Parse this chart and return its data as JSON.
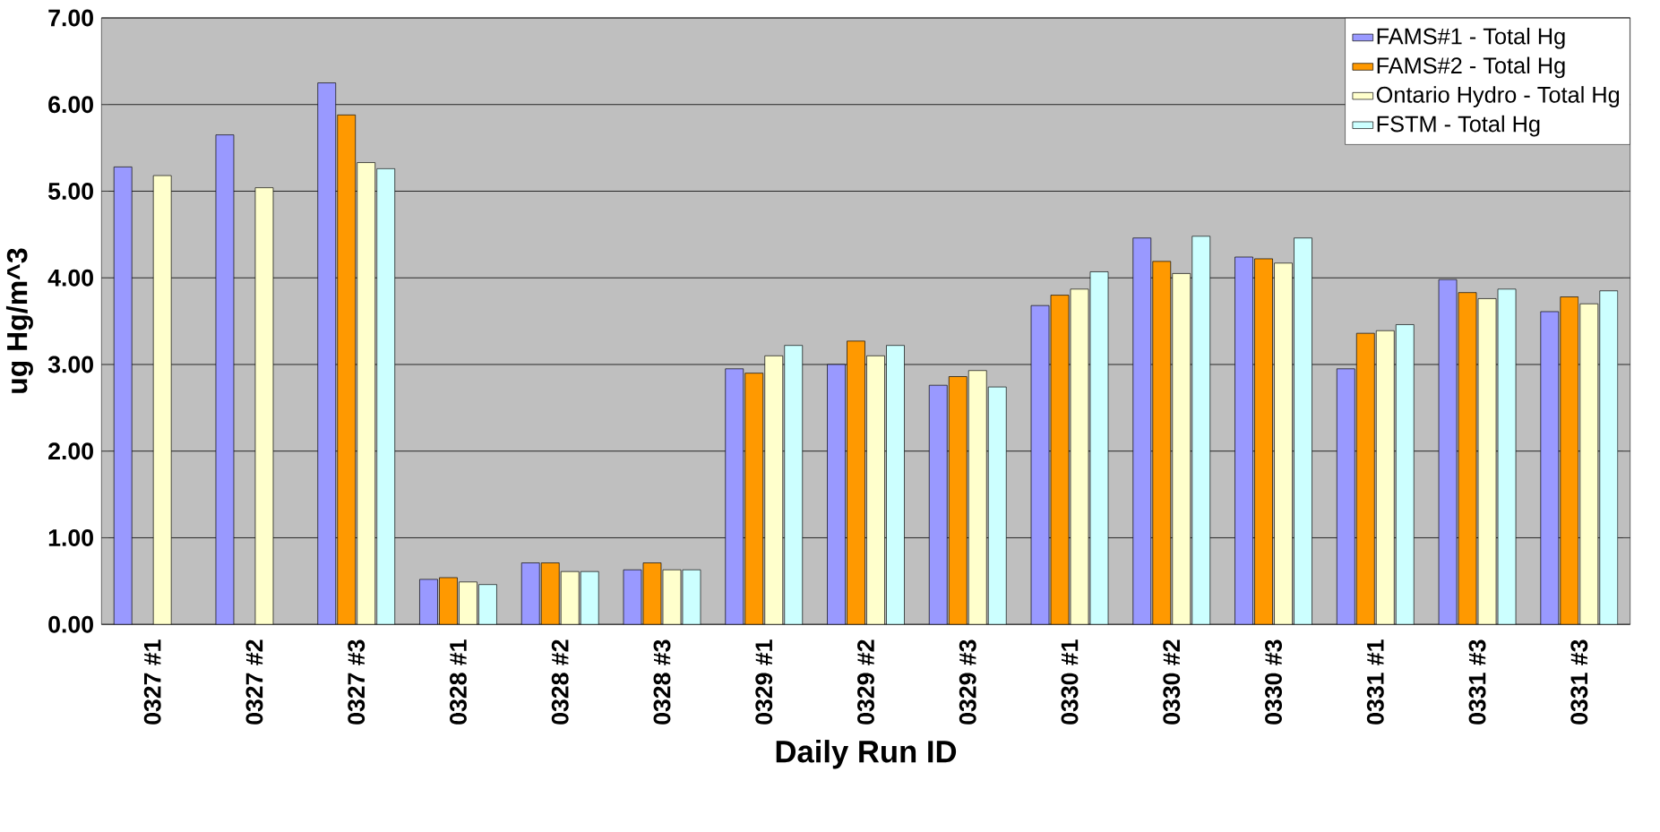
{
  "chart_data": {
    "type": "bar",
    "xlabel": "Daily Run ID",
    "ylabel": "ug Hg/m^3",
    "categories": [
      "0327 #1",
      "0327 #2",
      "0327 #3",
      "0328 #1",
      "0328 #2",
      "0328 #3",
      "0329 #1",
      "0329 #2",
      "0329 #3",
      "0330 #1",
      "0330 #2",
      "0330 #3",
      "0331 #1",
      "0331 #3",
      "0331 #3"
    ],
    "series": [
      {
        "name": "FAMS#1 - Total Hg",
        "color": "#9999ff",
        "values": [
          5.28,
          5.65,
          6.25,
          0.52,
          0.71,
          0.63,
          2.95,
          3.0,
          2.76,
          3.68,
          4.46,
          4.24,
          2.95,
          3.98,
          3.61
        ]
      },
      {
        "name": "FAMS#2 - Total Hg",
        "color": "#ff9900",
        "values": [
          null,
          null,
          5.88,
          0.54,
          0.71,
          0.71,
          2.9,
          3.27,
          2.86,
          3.8,
          4.19,
          4.22,
          3.36,
          3.83,
          3.78
        ]
      },
      {
        "name": "Ontario Hydro - Total Hg",
        "color": "#ffffcc",
        "values": [
          5.18,
          5.04,
          5.33,
          0.49,
          0.61,
          0.63,
          3.1,
          3.1,
          2.93,
          3.87,
          4.05,
          4.17,
          3.39,
          3.76,
          3.7
        ]
      },
      {
        "name": "FSTM - Total Hg",
        "color": "#ccffff",
        "values": [
          null,
          null,
          5.26,
          0.46,
          0.61,
          0.63,
          3.22,
          3.22,
          2.74,
          4.07,
          4.48,
          4.46,
          3.46,
          3.87,
          3.85
        ]
      }
    ],
    "ylim": [
      0,
      7
    ],
    "yticks": [
      {
        "value": 0,
        "label": "0.00"
      },
      {
        "value": 1,
        "label": "1.00"
      },
      {
        "value": 2,
        "label": "2.00"
      },
      {
        "value": 3,
        "label": "3.00"
      },
      {
        "value": 4,
        "label": "4.00"
      },
      {
        "value": 5,
        "label": "5.00"
      },
      {
        "value": 6,
        "label": "6.00"
      },
      {
        "value": 7,
        "label": "7.00"
      }
    ],
    "grid": "y",
    "legend": "top right"
  }
}
